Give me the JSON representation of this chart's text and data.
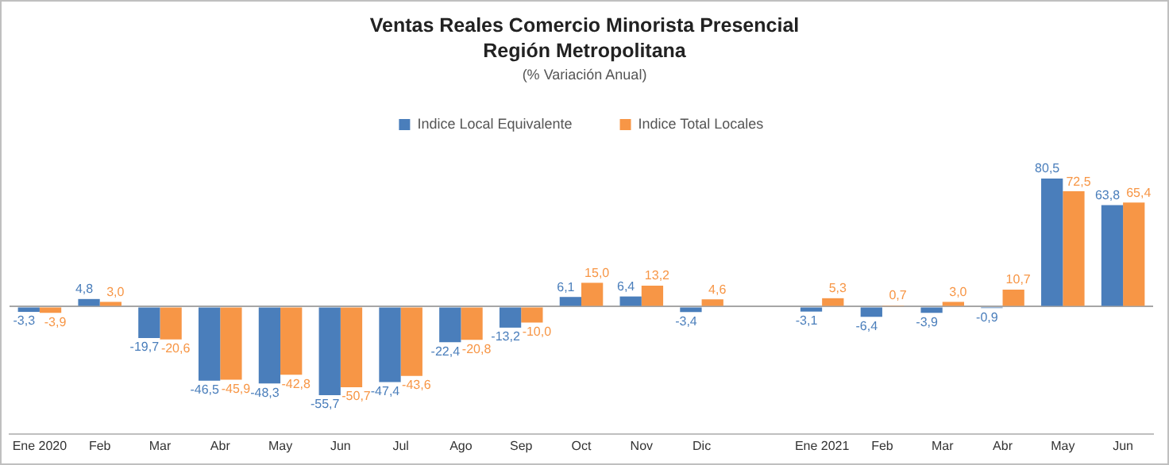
{
  "chart_data": {
    "type": "bar",
    "title": "Ventas Reales Comercio Minorista Presencial Región Metropolitana",
    "subtitle": "(% Variación Anual)",
    "categories": [
      "Ene 2020",
      "Feb",
      "Mar",
      "Abr",
      "May",
      "Jun",
      "Jul",
      "Ago",
      "Sep",
      "Oct",
      "Nov",
      "Dic",
      null,
      "Ene 2021",
      "Feb",
      "Mar",
      "Abr",
      "May",
      "Jun"
    ],
    "series": [
      {
        "name": "Indice Local Equivalente",
        "color": "#4a7ebb",
        "values": [
          -3.3,
          4.8,
          -19.7,
          -46.5,
          -48.3,
          -55.7,
          -47.4,
          -22.4,
          -13.2,
          6.1,
          6.4,
          -3.4,
          null,
          -3.1,
          -6.4,
          -3.9,
          -0.9,
          80.5,
          63.8
        ],
        "value_labels": [
          "-3,3",
          "4,8",
          "-19,7",
          "-46,5",
          "-48,3",
          "-55,7",
          "-47,4",
          "-22,4",
          "-13,2",
          "6,1",
          "6,4",
          "-3,4",
          null,
          "-3,1",
          "-6,4",
          "-3,9",
          "-0,9",
          "80,5",
          "63,8"
        ]
      },
      {
        "name": "Indice Total Locales",
        "color": "#f79646",
        "values": [
          -3.9,
          3.0,
          -20.6,
          -45.9,
          -42.8,
          -50.7,
          -43.6,
          -20.8,
          -10.0,
          15.0,
          13.2,
          4.6,
          null,
          5.3,
          0.7,
          3.0,
          10.7,
          72.5,
          65.4
        ],
        "value_labels": [
          "-3,9",
          "3,0",
          "-20,6",
          "-45,9",
          "-42,8",
          "-50,7",
          "-43,6",
          "-20,8",
          "-10,0",
          "15,0",
          "13,2",
          "4,6",
          null,
          "5,3",
          "0,7",
          "3,0",
          "10,7",
          "72,5",
          "65,4"
        ]
      }
    ],
    "relative": false,
    "legend": "top",
    "grid": false
  }
}
